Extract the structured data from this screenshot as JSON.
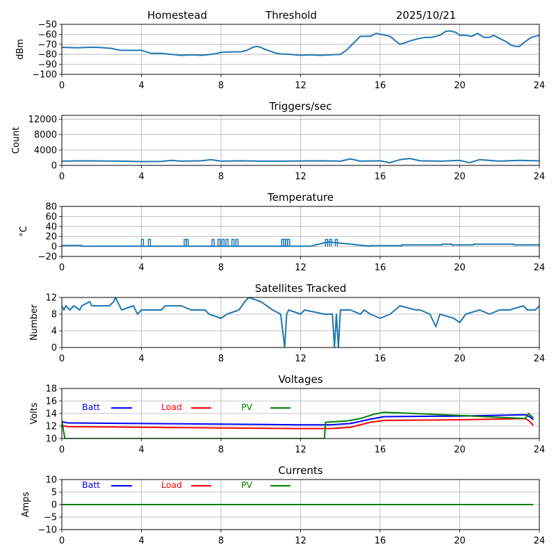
{
  "header": {
    "site": "Homestead",
    "mode": "Threshold",
    "date": "2025/10/21"
  },
  "chart_data": [
    {
      "type": "line",
      "title": "",
      "xlabel": "",
      "ylabel": "dBm",
      "xlim": [
        0,
        24
      ],
      "ylim": [
        -100,
        -50
      ],
      "xticks": [
        0,
        4,
        8,
        12,
        16,
        20,
        24
      ],
      "yticks": [
        -100,
        -90,
        -80,
        -70,
        -60,
        -50
      ],
      "ytick_labels": [
        "−100",
        "−90",
        "−80",
        "−70",
        "−60",
        "−50"
      ],
      "grid": true,
      "series": [
        {
          "name": "signal",
          "color": "#1f77b4",
          "x": [
            0,
            0.8,
            1.3,
            1.8,
            2.5,
            2.8,
            3.0,
            3.5,
            4.0,
            4.5,
            5.0,
            5.5,
            6.0,
            6.5,
            7.0,
            7.5,
            7.8,
            8.0,
            8.6,
            9.0,
            9.3,
            9.6,
            9.8,
            10.0,
            10.2,
            10.5,
            10.8,
            11.0,
            11.5,
            12.0,
            12.5,
            13.0,
            13.5,
            14.0,
            14.3,
            14.6,
            15.0,
            15.5,
            15.8,
            16.0,
            16.3,
            16.5,
            16.8,
            17.0,
            17.3,
            17.6,
            18.0,
            18.3,
            18.6,
            19.0,
            19.3,
            19.5,
            19.8,
            20.0,
            20.3,
            20.6,
            20.9,
            21.2,
            21.5,
            21.7,
            22.0,
            22.3,
            22.6,
            22.8,
            23.0,
            23.3,
            23.6,
            24.0
          ],
          "y": [
            -73,
            -73.5,
            -73,
            -73,
            -74,
            -75.5,
            -76,
            -76,
            -76,
            -79,
            -79,
            -80,
            -81,
            -80.5,
            -81,
            -80,
            -79,
            -78,
            -77.5,
            -77.5,
            -76,
            -73,
            -72,
            -73,
            -75,
            -77,
            -79,
            -79.5,
            -80,
            -81,
            -80.5,
            -81,
            -80.5,
            -80,
            -76,
            -70,
            -62,
            -62,
            -59,
            -60,
            -61,
            -62,
            -67,
            -70,
            -68,
            -66,
            -64,
            -63,
            -63,
            -61,
            -57,
            -56.5,
            -58,
            -61,
            -61,
            -62,
            -59,
            -63,
            -63,
            -61,
            -64,
            -67,
            -71,
            -72,
            -72,
            -67,
            -63,
            -61
          ]
        }
      ]
    },
    {
      "type": "line",
      "title": "Triggers/sec",
      "xlabel": "",
      "ylabel": "Count",
      "xlim": [
        0,
        24
      ],
      "ylim": [
        0,
        13000
      ],
      "xticks": [
        0,
        4,
        8,
        12,
        16,
        20,
        24
      ],
      "yticks": [
        0,
        4000,
        8000,
        12000
      ],
      "grid": true,
      "series": [
        {
          "name": "triggers",
          "color": "#1f77b4",
          "x": [
            0,
            1,
            2,
            3,
            4,
            5,
            5.5,
            6,
            7,
            7.5,
            8,
            9,
            10,
            11,
            12,
            13,
            14,
            14.5,
            15,
            16,
            16.5,
            17,
            17.5,
            18,
            19,
            20,
            20.5,
            21,
            22,
            23,
            24
          ],
          "y": [
            1100,
            1200,
            1150,
            1100,
            1000,
            1050,
            1300,
            1100,
            1200,
            1500,
            1100,
            1200,
            1100,
            1100,
            1150,
            1200,
            1100,
            1700,
            1100,
            1200,
            700,
            1500,
            1800,
            1200,
            1100,
            1300,
            700,
            1500,
            1100,
            1300,
            1200
          ]
        }
      ]
    },
    {
      "type": "line",
      "title": "Temperature",
      "xlabel": "",
      "ylabel": "°C",
      "xlim": [
        0,
        24
      ],
      "ylim": [
        -20,
        80
      ],
      "xticks": [
        0,
        4,
        8,
        12,
        16,
        20,
        24
      ],
      "yticks": [
        -20,
        0,
        20,
        40,
        60,
        80
      ],
      "ytick_labels": [
        "−20",
        "0",
        "20",
        "40",
        "60",
        "80"
      ],
      "grid": true,
      "spikes_x": [
        4.05,
        4.4,
        6.2,
        6.3,
        7.6,
        7.9,
        8.1,
        8.3,
        8.6,
        8.8,
        11.1,
        11.2,
        11.3,
        11.4,
        13.3,
        13.5,
        13.8
      ],
      "series": [
        {
          "name": "temperature",
          "color": "#1f77b4",
          "x": [
            0,
            1.0,
            1.0,
            12.0,
            12.5,
            13.4,
            15.5,
            15.5,
            17.1,
            17.1,
            19.1,
            19.1,
            19.6,
            19.6,
            20.7,
            20.7,
            22.7,
            22.7,
            24
          ],
          "y": [
            2,
            2,
            0.5,
            0.5,
            0.5,
            9,
            0.5,
            1.5,
            1.5,
            3,
            3,
            4.5,
            4.5,
            3,
            3,
            4.5,
            4.5,
            3,
            3
          ]
        }
      ]
    },
    {
      "type": "line",
      "title": "Satellites Tracked",
      "xlabel": "",
      "ylabel": "Number",
      "xlim": [
        0,
        24
      ],
      "ylim": [
        0,
        12
      ],
      "xticks": [
        0,
        4,
        8,
        12,
        16,
        20,
        24
      ],
      "yticks": [
        0,
        4,
        8,
        12
      ],
      "grid": true,
      "series": [
        {
          "name": "satellites",
          "color": "#1f77b4",
          "x": [
            0,
            0.1,
            0.2,
            0.4,
            0.6,
            0.9,
            1.0,
            1.4,
            1.5,
            2.4,
            2.6,
            2.7,
            2.8,
            3.0,
            3.6,
            3.7,
            3.8,
            4.0,
            5.0,
            5.2,
            6.0,
            6.5,
            7.2,
            7.4,
            8.0,
            8.3,
            8.9,
            9.2,
            9.4,
            10.0,
            10.6,
            11.0,
            11.2,
            11.3,
            11.4,
            12.0,
            12.2,
            13.2,
            13.6,
            13.7,
            13.8,
            13.9,
            14.0,
            14.5,
            15.0,
            15.2,
            15.5,
            16.0,
            16.5,
            17.0,
            17.8,
            18.0,
            18.5,
            18.8,
            19.0,
            19.7,
            20.0,
            20.3,
            21.0,
            21.5,
            22.0,
            22.5,
            23.2,
            23.4,
            23.8,
            24.0
          ],
          "y": [
            10,
            9,
            10,
            9,
            10,
            9,
            10,
            11,
            10,
            10,
            11,
            12,
            11,
            9,
            10,
            9,
            8,
            9,
            9,
            10,
            10,
            9,
            9,
            8,
            7,
            8,
            9,
            11,
            12,
            11,
            9,
            8,
            0,
            8,
            9,
            8,
            9,
            8,
            8,
            0,
            8,
            0,
            9,
            9,
            8,
            9,
            8,
            7,
            8,
            10,
            9,
            9,
            8,
            5,
            8,
            7,
            6,
            8,
            9,
            8,
            9,
            9,
            10,
            9,
            9,
            10
          ]
        }
      ]
    },
    {
      "type": "line",
      "title": "Voltages",
      "xlabel": "",
      "ylabel": "Volts",
      "xlim": [
        0,
        24
      ],
      "ylim": [
        10,
        18
      ],
      "xticks": [
        0,
        4,
        8,
        12,
        16,
        20,
        24
      ],
      "yticks": [
        10,
        12,
        14,
        16,
        18
      ],
      "grid": true,
      "legend": "top-left, inline",
      "series": [
        {
          "name": "Batt",
          "color": "#0000ff",
          "x": [
            0,
            0.3,
            4,
            8,
            12,
            13.5,
            14.5,
            15.5,
            16.2,
            20,
            23.3,
            23.5,
            23.7
          ],
          "y": [
            12.7,
            12.5,
            12.4,
            12.3,
            12.2,
            12.2,
            12.4,
            13.1,
            13.5,
            13.6,
            13.8,
            13.5,
            13.0
          ]
        },
        {
          "name": "Load",
          "color": "#ff0000",
          "x": [
            0,
            0.3,
            4,
            8,
            12,
            13.5,
            14.5,
            15.5,
            16.2,
            20,
            23.3,
            23.5,
            23.7
          ],
          "y": [
            12.1,
            11.9,
            11.8,
            11.7,
            11.6,
            11.6,
            11.8,
            12.6,
            12.9,
            13.0,
            13.2,
            12.8,
            12.1
          ]
        },
        {
          "name": "PV",
          "color": "#008000",
          "x": [
            0,
            0.15,
            13.2,
            13.25,
            14.3,
            15.0,
            15.7,
            16.2,
            20,
            23.3,
            23.45,
            23.7
          ],
          "y": [
            12.8,
            10.0,
            10.0,
            12.6,
            12.8,
            13.2,
            13.9,
            14.2,
            13.7,
            13.2,
            14.0,
            13.3
          ]
        }
      ]
    },
    {
      "type": "line",
      "title": "Currents",
      "xlabel": "",
      "ylabel": "Amps",
      "xlim": [
        0,
        24
      ],
      "ylim": [
        -10,
        10
      ],
      "xticks": [
        0,
        4,
        8,
        12,
        16,
        20,
        24
      ],
      "yticks": [
        -10,
        -5,
        0,
        5,
        10
      ],
      "ytick_labels": [
        "−10",
        "−5",
        "0",
        "5",
        "10"
      ],
      "grid": true,
      "legend": "top-left, inline",
      "series": [
        {
          "name": "Batt",
          "color": "#0000ff",
          "x": [
            0,
            23.7
          ],
          "y": [
            0,
            0
          ]
        },
        {
          "name": "Load",
          "color": "#ff0000",
          "x": [
            0,
            23.7
          ],
          "y": [
            0,
            0
          ]
        },
        {
          "name": "PV",
          "color": "#008000",
          "x": [
            0,
            23.7
          ],
          "y": [
            0,
            0
          ]
        }
      ]
    }
  ]
}
